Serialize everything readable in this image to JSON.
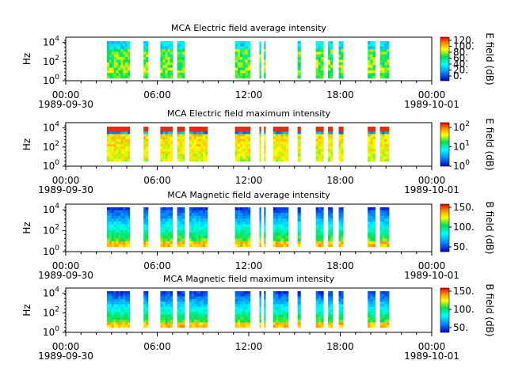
{
  "chart_data": [
    {
      "type": "heatmap",
      "title": "MCA  Electric field average intensity",
      "ylabel": "Hz",
      "y_scale": "log",
      "y_ticks": [
        "10^4",
        "10^2",
        "10^0"
      ],
      "x_ticks": [
        "00:00",
        "06:00",
        "12:00",
        "18:00",
        "00:00"
      ],
      "date_start": "1989-09-30",
      "date_end": "1989-10-01",
      "colorbar_label": "E field (dB)",
      "colorbar_ticks": [
        "120.",
        "100.",
        "80.",
        "60.",
        "40.",
        "20.",
        "0."
      ],
      "colorbar_scale": "linear",
      "colors": {
        "low": "#0000c8",
        "high": "#e60000"
      },
      "segments_hours": [
        [
          2.7,
          4.2
        ],
        [
          5.1,
          5.4
        ],
        [
          6.2,
          7.0
        ],
        [
          7.3,
          7.8
        ],
        [
          11.1,
          12.1
        ],
        [
          12.7,
          12.8
        ],
        [
          13.0,
          13.1
        ],
        [
          15.2,
          15.4
        ],
        [
          16.4,
          16.9
        ],
        [
          17.2,
          17.5
        ],
        [
          17.9,
          18.2
        ],
        [
          19.8,
          20.3
        ],
        [
          20.6,
          21.2
        ]
      ]
    },
    {
      "type": "heatmap",
      "title": "MCA  Electric field maximum intensity",
      "ylabel": "Hz",
      "y_scale": "log",
      "y_ticks": [
        "10^4",
        "10^2",
        "10^0"
      ],
      "x_ticks": [
        "00:00",
        "06:00",
        "12:00",
        "18:00",
        "00:00"
      ],
      "date_start": "1989-09-30",
      "date_end": "1989-10-01",
      "colorbar_label": "E field (dB)",
      "colorbar_ticks": [
        "10^2",
        "10^1",
        "10^0"
      ],
      "colorbar_scale": "log",
      "colors": {
        "low": "#0000c8",
        "high": "#e60000"
      },
      "segments_hours": [
        [
          2.7,
          4.2
        ],
        [
          5.1,
          5.4
        ],
        [
          6.2,
          7.0
        ],
        [
          7.3,
          7.8
        ],
        [
          8.1,
          9.3
        ],
        [
          11.1,
          12.1
        ],
        [
          12.7,
          12.8
        ],
        [
          13.0,
          13.1
        ],
        [
          13.6,
          14.6
        ],
        [
          15.2,
          15.4
        ],
        [
          16.4,
          16.9
        ],
        [
          17.2,
          17.5
        ],
        [
          17.9,
          18.2
        ],
        [
          19.8,
          20.3
        ],
        [
          20.6,
          21.2
        ]
      ]
    },
    {
      "type": "heatmap",
      "title": "MCA  Magnetic field average intensity",
      "ylabel": "Hz",
      "y_scale": "log",
      "y_ticks": [
        "10^4",
        "10^2",
        "10^0"
      ],
      "x_ticks": [
        "00:00",
        "06:00",
        "12:00",
        "18:00",
        "00:00"
      ],
      "date_start": "1989-09-30",
      "date_end": "1989-10-01",
      "colorbar_label": "B field (dB)",
      "colorbar_ticks": [
        "150.",
        "100.",
        "50."
      ],
      "colorbar_scale": "linear",
      "colors": {
        "low": "#0000c8",
        "high": "#e60000"
      },
      "segments_hours": [
        [
          2.7,
          4.2
        ],
        [
          5.1,
          5.4
        ],
        [
          6.2,
          7.0
        ],
        [
          7.3,
          7.8
        ],
        [
          8.1,
          9.3
        ],
        [
          11.1,
          12.1
        ],
        [
          12.7,
          12.8
        ],
        [
          13.0,
          13.1
        ],
        [
          13.6,
          14.6
        ],
        [
          15.2,
          15.4
        ],
        [
          16.4,
          16.9
        ],
        [
          17.2,
          17.5
        ],
        [
          17.9,
          18.2
        ],
        [
          19.8,
          20.3
        ],
        [
          20.6,
          21.2
        ]
      ]
    },
    {
      "type": "heatmap",
      "title": "MCA  Magnetic field maximum intensity",
      "ylabel": "Hz",
      "y_scale": "log",
      "y_ticks": [
        "10^4",
        "10^2",
        "10^0"
      ],
      "x_ticks": [
        "00:00",
        "06:00",
        "12:00",
        "18:00",
        "00:00"
      ],
      "date_start": "1989-09-30",
      "date_end": "1989-10-01",
      "colorbar_label": "B field (dB)",
      "colorbar_ticks": [
        "150.",
        "100.",
        "50."
      ],
      "colorbar_scale": "linear",
      "colors": {
        "low": "#0000c8",
        "high": "#e60000"
      },
      "segments_hours": [
        [
          2.7,
          4.2
        ],
        [
          5.1,
          5.4
        ],
        [
          6.2,
          7.0
        ],
        [
          7.3,
          7.8
        ],
        [
          8.1,
          9.3
        ],
        [
          11.1,
          12.1
        ],
        [
          12.7,
          12.8
        ],
        [
          13.0,
          13.1
        ],
        [
          13.6,
          14.6
        ],
        [
          15.2,
          15.4
        ],
        [
          16.4,
          16.9
        ],
        [
          17.2,
          17.5
        ],
        [
          17.9,
          18.2
        ],
        [
          19.8,
          20.3
        ],
        [
          20.6,
          21.2
        ]
      ]
    }
  ]
}
